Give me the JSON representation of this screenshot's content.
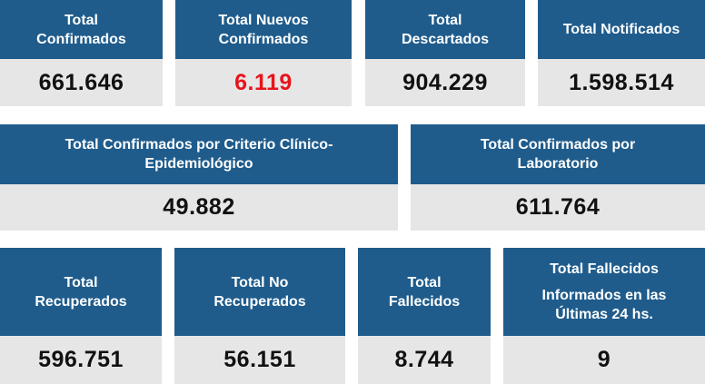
{
  "colors": {
    "header_bg": "#1f5c8c",
    "value_bg": "#e6e6e6",
    "highlight": "#e8141b"
  },
  "row1": [
    {
      "title": "Total\nConfirmados",
      "value": "661.646"
    },
    {
      "title": "Total Nuevos\nConfirmados",
      "value": "6.119"
    },
    {
      "title": "Total\nDescartados",
      "value": "904.229"
    },
    {
      "title": "Total Notificados",
      "value": "1.598.514"
    }
  ],
  "row2": [
    {
      "title": "Total Confirmados por Criterio Clínico-\nEpidemiológico",
      "value": "49.882"
    },
    {
      "title": "Total Confirmados por\nLaboratorio",
      "value": "611.764"
    }
  ],
  "row3": [
    {
      "title": "Total\nRecuperados",
      "value": "596.751"
    },
    {
      "title": "Total No\nRecuperados",
      "value": "56.151"
    },
    {
      "title": "Total\nFallecidos",
      "value": "8.744"
    },
    {
      "title": "Total Fallecidos",
      "subtitle": "Informados en las\nÚltimas 24 hs.",
      "value": "9"
    }
  ]
}
